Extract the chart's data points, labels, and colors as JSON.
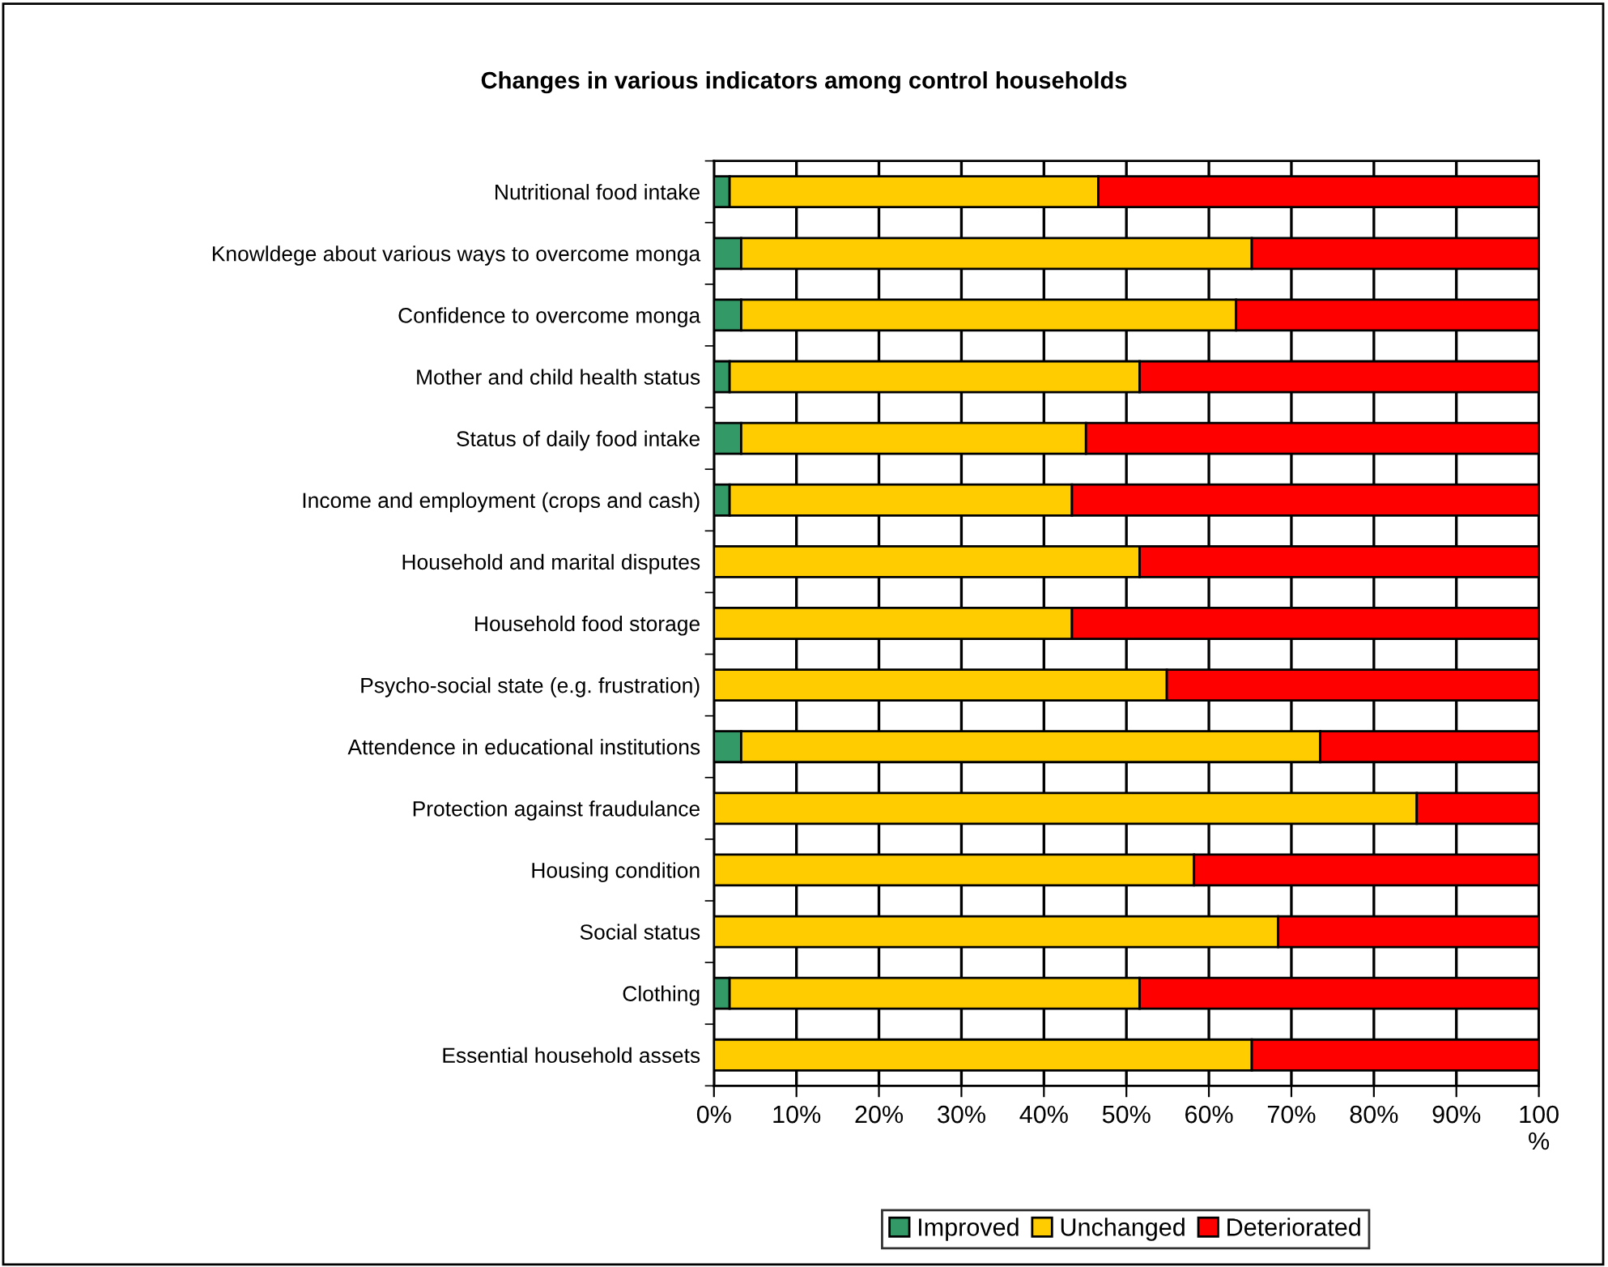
{
  "chart_data": {
    "type": "bar",
    "orientation": "horizontal",
    "stacked": true,
    "title": "Changes in various indicators among control households",
    "categories": [
      "Nutritional food intake",
      "Knowldege about various ways to overcome monga",
      "Confidence to overcome monga",
      "Mother and child health status",
      "Status of daily food intake",
      "Income and employment (crops and cash)",
      "Household and marital disputes",
      "Household food storage",
      "Psycho-social state (e.g. frustration)",
      "Attendence in educational institutions",
      "Protection against fraudulance",
      "Housing condition",
      "Social status",
      "Clothing",
      "Essential household assets"
    ],
    "series": [
      {
        "name": "Improved",
        "color": "#339966",
        "values": [
          1.9,
          3.3,
          3.3,
          1.9,
          3.3,
          1.9,
          0,
          0,
          0,
          3.3,
          0,
          0,
          0,
          1.9,
          0
        ]
      },
      {
        "name": "Unchanged",
        "color": "#ffcc00",
        "values": [
          44.7,
          61.9,
          60.0,
          49.7,
          41.8,
          41.5,
          51.6,
          43.4,
          54.9,
          70.2,
          85.2,
          58.2,
          68.4,
          49.7,
          65.2
        ]
      },
      {
        "name": "Deteriorated",
        "color": "#ff0000",
        "values": [
          53.4,
          34.8,
          36.7,
          48.4,
          54.9,
          56.6,
          48.4,
          56.6,
          45.1,
          26.5,
          14.8,
          41.8,
          31.6,
          48.4,
          34.8
        ]
      }
    ],
    "xlim": [
      0,
      100
    ],
    "xticks": [
      {
        "value": 0,
        "label": "0%"
      },
      {
        "value": 10,
        "label": "10%"
      },
      {
        "value": 20,
        "label": "20%"
      },
      {
        "value": 30,
        "label": "30%"
      },
      {
        "value": 40,
        "label": "40%"
      },
      {
        "value": 50,
        "label": "50%"
      },
      {
        "value": 60,
        "label": "60%"
      },
      {
        "value": 70,
        "label": "70%"
      },
      {
        "value": 80,
        "label": "80%"
      },
      {
        "value": 90,
        "label": "90%"
      },
      {
        "value": 100,
        "label": "100\n%"
      }
    ],
    "grid": "x",
    "legend": "bottom"
  }
}
